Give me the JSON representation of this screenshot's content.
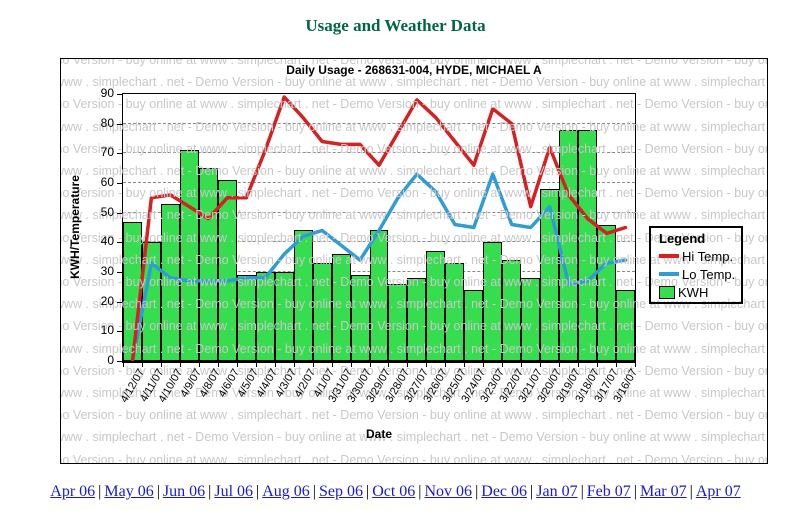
{
  "page": {
    "title": "Usage and Weather Data",
    "title_color": "#006645",
    "background": "#ffffff"
  },
  "chart": {
    "subtitle": "Daily Usage - 268631-004, HYDE, MICHAEL A",
    "legend_title": "Legend",
    "watermark_text": "Demo Version - buy online at www . simplechart . net - ",
    "watermark_color": "#c8c8c8",
    "axis_color": "#000000",
    "grid_color": "#888888"
  },
  "chart_data": {
    "type": "bar",
    "title": "Daily Usage - 268631-004, HYDE, MICHAEL A",
    "xlabel": "Date",
    "ylabel": "KWH/Temperature",
    "ylim": [
      0,
      90
    ],
    "ytick_step": 10,
    "grid": "horizontal-dashed",
    "legend_position": "right",
    "categories": [
      "4/12/07",
      "4/11/07",
      "4/10/07",
      "4/9/07",
      "4/8/07",
      "4/6/07",
      "4/5/07",
      "4/4/07",
      "4/3/07",
      "4/2/07",
      "4/1/07",
      "3/31/07",
      "3/30/07",
      "3/29/07",
      "3/28/07",
      "3/27/07",
      "3/26/07",
      "3/25/07",
      "3/24/07",
      "3/23/07",
      "3/22/07",
      "3/21/07",
      "3/20/07",
      "3/19/07",
      "3/18/07",
      "3/17/07",
      "3/16/07"
    ],
    "series": [
      {
        "name": "Hi Temp.",
        "type": "line",
        "color": "#d42121",
        "values": [
          0,
          55,
          56,
          52,
          48,
          55,
          55,
          71,
          89,
          82,
          74,
          73,
          73,
          66,
          77,
          88,
          82,
          74,
          66,
          85,
          80,
          52,
          72,
          56,
          48,
          43,
          45
        ]
      },
      {
        "name": "Lo Temp.",
        "type": "line",
        "color": "#2f9cd3",
        "values": [
          0,
          33,
          28,
          27,
          27,
          27,
          28,
          28,
          36,
          42,
          44,
          39,
          34,
          44,
          55,
          63,
          57,
          46,
          45,
          63,
          46,
          45,
          52,
          26,
          27,
          33,
          34
        ]
      },
      {
        "name": "KWH",
        "type": "bar",
        "color": "#35dd4f",
        "values": [
          47,
          40,
          53,
          71,
          65,
          61,
          29,
          30,
          30,
          44,
          33,
          36,
          29,
          44,
          26,
          28,
          37,
          33,
          24,
          40,
          34,
          28,
          58,
          78,
          78,
          46,
          24
        ]
      }
    ]
  },
  "footer": {
    "separator": "|",
    "link_color": "#1a1acc",
    "links": [
      "Apr 06",
      "May 06",
      "Jun 06",
      "Jul 06",
      "Aug 06",
      "Sep 06",
      "Oct 06",
      "Nov 06",
      "Dec 06",
      "Jan 07",
      "Feb 07",
      "Mar 07",
      "Apr 07"
    ]
  }
}
